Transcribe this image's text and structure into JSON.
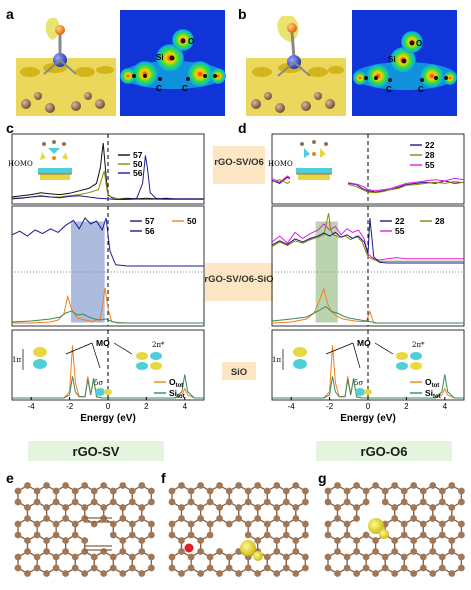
{
  "panel_letters": [
    "a",
    "b",
    "c",
    "d",
    "e",
    "f",
    "g"
  ],
  "map_atoms": {
    "o": "O",
    "si": "Si",
    "c": "C"
  },
  "center_labels": {
    "rgo_sv_o6": "rGO-SV/O6",
    "rgo_sv_o6_sio": "rGO-SV/O6-SiO",
    "sio": "SiO"
  },
  "bottom_labels": {
    "left": "rGO-SV",
    "right": "rGO-O6"
  },
  "mo": {
    "homo": "HOMO",
    "mo": "MO",
    "pi": "1π",
    "sigma": "5σ",
    "pistar": "2π*"
  },
  "colors": {
    "black": "#111111",
    "olive": "#8a8a00",
    "navy": "#1c1c8c",
    "magenta": "#e020e0",
    "orange": "#f08020",
    "green": "#3a8a5a",
    "blue_box": "#4a6ab8",
    "green_box": "#6aa050",
    "tan_box": "#fde6c4",
    "green_label": "#e3f4df",
    "atom_c": "#9a7050"
  },
  "chart_data": [
    {
      "id": "c-top",
      "type": "line",
      "xlabel": "",
      "ylabel": "",
      "xlim": [
        -5,
        5
      ],
      "xticks": [],
      "legend": [
        "57",
        "50",
        "56"
      ],
      "series": [
        {
          "name": "57",
          "color": "#111111",
          "x": [
            -5,
            -4.5,
            -4,
            -3.5,
            -3,
            -2.5,
            -2,
            -1.5,
            -1,
            -0.6,
            -0.4,
            -0.25,
            -0.15,
            -0.05,
            0,
            0.2,
            0.5,
            1,
            1.5,
            2,
            2.5,
            3,
            3.5,
            4,
            4.5,
            5
          ],
          "y": [
            0.08,
            0.1,
            0.12,
            0.15,
            0.13,
            0.12,
            0.14,
            0.18,
            0.22,
            0.3,
            0.55,
            0.95,
            0.6,
            0.25,
            0.12,
            0.07,
            0.05,
            0.06,
            0.05,
            0.06,
            0.05,
            0.06,
            0.05,
            0.05,
            0.05,
            0.05
          ]
        },
        {
          "name": "50",
          "color": "#8a8a00",
          "x": [
            -5,
            -4.5,
            -4,
            -3.5,
            -3,
            -2.5,
            -2,
            -1.5,
            -1,
            -0.5,
            -0.2,
            0,
            0.5,
            1,
            2,
            3,
            4,
            5
          ],
          "y": [
            0.06,
            0.07,
            0.08,
            0.09,
            0.08,
            0.08,
            0.1,
            0.12,
            0.15,
            0.2,
            0.5,
            0.1,
            0.05,
            0.04,
            0.04,
            0.04,
            0.04,
            0.04
          ]
        },
        {
          "name": "56",
          "color": "#1c1c8c",
          "x": [
            -5,
            -4.5,
            -4,
            -3.5,
            -3,
            -2.5,
            -2,
            -1.5,
            -1,
            -0.5,
            0,
            0.5,
            1,
            1.5,
            1.8,
            1.95,
            2.05,
            2.2,
            2.5,
            3,
            3.5,
            4,
            4.5,
            5
          ],
          "y": [
            0.05,
            0.06,
            0.08,
            0.1,
            0.08,
            0.07,
            0.09,
            0.1,
            0.08,
            0.06,
            0.05,
            0.04,
            0.04,
            0.06,
            0.3,
            0.75,
            0.55,
            0.15,
            0.06,
            0.05,
            0.05,
            0.05,
            0.05,
            0.05
          ]
        }
      ]
    },
    {
      "id": "c-mid",
      "type": "line",
      "xlabel": "",
      "ylabel": "",
      "xlim": [
        -5,
        5
      ],
      "xticks": [],
      "legend": [
        "57",
        "50",
        "56"
      ],
      "highlight": {
        "x0": -1.9,
        "x1": -0.2,
        "color": "#4a6ab8"
      },
      "series": [
        {
          "name": "56",
          "color": "#1c1c8c",
          "x": [
            -5,
            -4.6,
            -4.2,
            -3.8,
            -3.4,
            -3,
            -2.6,
            -2.2,
            -1.8,
            -1.5,
            -1.2,
            -0.9,
            -0.6,
            -0.3,
            -0.1,
            0.1,
            0.4,
            1,
            2,
            3,
            4,
            5
          ],
          "y": [
            0.62,
            0.68,
            0.6,
            0.7,
            0.64,
            0.72,
            0.66,
            0.78,
            0.86,
            0.72,
            0.9,
            0.8,
            0.85,
            0.7,
            0.9,
            0.35,
            0.12,
            0.1,
            0.1,
            0.1,
            0.1,
            0.1
          ]
        },
        {
          "name": "O",
          "color": "#f08020",
          "x": [
            -5,
            -4,
            -3,
            -2.6,
            -2.3,
            -2.1,
            -1.9,
            -1.6,
            -1.2,
            -0.8,
            -0.4,
            -0.15,
            0,
            0.2,
            0.5,
            1,
            2,
            3,
            4,
            5
          ],
          "y": [
            0.02,
            0.02,
            0.04,
            0.08,
            0.2,
            0.55,
            0.3,
            0.12,
            0.08,
            0.05,
            0.1,
            0.72,
            0.3,
            0.05,
            0.02,
            0.02,
            0.02,
            0.02,
            0.02,
            0.02
          ]
        },
        {
          "name": "Si",
          "color": "#3a8a5a",
          "x": [
            -5,
            -4,
            -3,
            -2.5,
            -2.2,
            -1.9,
            -1.6,
            -1.3,
            -1,
            -0.7,
            -0.4,
            -0.1,
            0.2,
            0.5,
            1,
            2,
            3,
            4,
            5
          ],
          "y": [
            0.04,
            0.06,
            0.1,
            0.14,
            0.22,
            0.26,
            0.18,
            0.2,
            0.14,
            0.1,
            0.08,
            0.1,
            0.05,
            0.03,
            0.02,
            0.02,
            0.02,
            0.02,
            0.02
          ]
        }
      ]
    },
    {
      "id": "c-bot",
      "type": "line",
      "xlabel": "Energy (eV)",
      "ylabel": "",
      "xlim": [
        -5,
        5
      ],
      "xticks": [
        -4,
        -2,
        0,
        2,
        4
      ],
      "legend": [
        "Otot",
        "Sitot"
      ],
      "series": [
        {
          "name": "Otot",
          "color": "#f08020",
          "x": [
            -5,
            -2.3,
            -2.0,
            -1.85,
            -1.7,
            -1.5,
            -1.2,
            -1.05,
            -0.9,
            -0.75,
            -0.6,
            -0.3,
            0,
            3.5,
            3.85,
            4.0,
            4.15,
            4.5,
            5
          ],
          "y": [
            0,
            0,
            0.1,
            0.85,
            0.25,
            0.02,
            0.02,
            0.35,
            0.05,
            0.3,
            0.02,
            0,
            0,
            0,
            0.05,
            0.15,
            0.05,
            0,
            0
          ]
        },
        {
          "name": "Sitot",
          "color": "#3a8a5a",
          "x": [
            -5,
            -2.3,
            -2.0,
            -1.85,
            -1.7,
            -1.5,
            -1.2,
            -1.05,
            -0.9,
            -0.75,
            -0.6,
            -0.3,
            0,
            3.5,
            3.85,
            4.0,
            4.15,
            4.5,
            5
          ],
          "y": [
            0,
            0,
            0.05,
            0.35,
            0.1,
            0.02,
            0.02,
            0.3,
            0.05,
            0.32,
            0.02,
            0,
            0,
            0,
            0.1,
            0.38,
            0.1,
            0,
            0
          ]
        }
      ]
    },
    {
      "id": "d-top",
      "type": "line",
      "xlabel": "",
      "ylabel": "",
      "xlim": [
        -5,
        5
      ],
      "xticks": [],
      "legend": [
        "22",
        "28",
        "55"
      ],
      "series": [
        {
          "name": "22",
          "color": "#1c1c8c",
          "x": [
            -5,
            -4.6,
            -4.2,
            -3.8,
            -3.4,
            -3,
            -2.6,
            -2.2,
            -1.8,
            -1.4,
            -1,
            -0.6,
            -0.3,
            0,
            0.4,
            0.8,
            1.2,
            1.6,
            2,
            2.5,
            3,
            3.5,
            4,
            4.5,
            5
          ],
          "y": [
            0.35,
            0.3,
            0.4,
            0.32,
            0.42,
            0.3,
            0.38,
            0.3,
            0.34,
            0.4,
            0.3,
            0.28,
            0.22,
            0.18,
            0.16,
            0.18,
            0.2,
            0.24,
            0.28,
            0.3,
            0.32,
            0.3,
            0.34,
            0.3,
            0.32
          ]
        },
        {
          "name": "28",
          "color": "#8a8a00",
          "x": [
            -5,
            -4.6,
            -4.2,
            -3.8,
            -3.4,
            -3,
            -2.6,
            -2.2,
            -1.8,
            -1.4,
            -1,
            -0.6,
            -0.3,
            0,
            0.4,
            0.8,
            1.2,
            1.6,
            2,
            2.5,
            3,
            3.5,
            4,
            4.5,
            5
          ],
          "y": [
            0.32,
            0.36,
            0.3,
            0.38,
            0.34,
            0.36,
            0.32,
            0.35,
            0.38,
            0.32,
            0.28,
            0.25,
            0.2,
            0.16,
            0.15,
            0.17,
            0.2,
            0.22,
            0.27,
            0.28,
            0.3,
            0.32,
            0.3,
            0.33,
            0.31
          ]
        },
        {
          "name": "55",
          "color": "#e020e0",
          "x": [
            -5,
            -4.6,
            -4.2,
            -3.8,
            -3.4,
            -3,
            -2.6,
            -2.3,
            -2.15,
            -2.05,
            -1.9,
            -1.6,
            -1.2,
            -0.8,
            -0.5,
            -0.2,
            0,
            0.4,
            0.8,
            1.2,
            1.6,
            2,
            2.5,
            3,
            3.5,
            4,
            4.5,
            5
          ],
          "y": [
            0.38,
            0.32,
            0.42,
            0.34,
            0.4,
            0.36,
            0.44,
            0.5,
            0.95,
            0.6,
            0.42,
            0.36,
            0.32,
            0.3,
            0.28,
            0.24,
            0.2,
            0.18,
            0.2,
            0.22,
            0.26,
            0.3,
            0.32,
            0.34,
            0.36,
            0.34,
            0.38,
            0.36
          ]
        }
      ]
    },
    {
      "id": "d-mid",
      "type": "line",
      "xlabel": "",
      "ylabel": "",
      "xlim": [
        -5,
        5
      ],
      "xticks": [],
      "legend": [
        "22",
        "28",
        "55"
      ],
      "highlight": {
        "x0": -2.7,
        "x1": -1.6,
        "color": "#6aa050"
      },
      "series": [
        {
          "name": "55",
          "color": "#e020e0",
          "x": [
            -5,
            -4.6,
            -4.2,
            -3.8,
            -3.4,
            -3,
            -2.6,
            -2.3,
            -2,
            -1.7,
            -1.4,
            -1.1,
            -0.8,
            -0.5,
            -0.2,
            0,
            0.3,
            0.6,
            1,
            1.5,
            2,
            2.5,
            3,
            3.5,
            4,
            4.5,
            5
          ],
          "y": [
            0.5,
            0.6,
            0.48,
            0.66,
            0.56,
            0.64,
            0.7,
            0.8,
            0.7,
            0.76,
            0.62,
            0.72,
            0.66,
            0.7,
            0.55,
            0.3,
            0.22,
            0.2,
            0.22,
            0.24,
            0.22,
            0.22,
            0.22,
            0.22,
            0.22,
            0.22,
            0.22
          ]
        },
        {
          "name": "28",
          "color": "#8a8a00",
          "x": [
            -5,
            -4.6,
            -4.2,
            -3.8,
            -3.4,
            -3,
            -2.6,
            -2.3,
            -2.05,
            -1.95,
            -1.8,
            -1.5,
            -1.2,
            -0.9,
            -0.6,
            -0.3,
            0,
            0.5,
            1,
            2,
            3,
            4,
            5
          ],
          "y": [
            0.42,
            0.5,
            0.44,
            0.52,
            0.48,
            0.54,
            0.58,
            0.62,
            0.98,
            0.7,
            0.62,
            0.58,
            0.6,
            0.54,
            0.6,
            0.5,
            0.25,
            0.18,
            0.18,
            0.18,
            0.18,
            0.18,
            0.18
          ]
        },
        {
          "name": "22",
          "color": "#1c1c8c",
          "x": [
            -5,
            -4.6,
            -4.2,
            -3.8,
            -3.4,
            -3,
            -2.6,
            -2.3,
            -2,
            -1.7,
            -1.4,
            -1.1,
            -0.8,
            -0.5,
            -0.2,
            0,
            0.1,
            0.3,
            0.6,
            1,
            2,
            3,
            4,
            5
          ],
          "y": [
            0.45,
            0.52,
            0.46,
            0.55,
            0.5,
            0.56,
            0.6,
            0.65,
            0.6,
            0.66,
            0.58,
            0.62,
            0.56,
            0.6,
            0.5,
            0.3,
            0.9,
            0.25,
            0.16,
            0.15,
            0.15,
            0.15,
            0.15,
            0.15
          ]
        },
        {
          "name": "O",
          "color": "#f08020",
          "x": [
            -5,
            -4,
            -3.2,
            -2.8,
            -2.5,
            -2.3,
            -2.1,
            -1.9,
            -1.6,
            -1.3,
            -1,
            -0.7,
            -0.4,
            -0.1,
            0.1,
            0.3,
            0.5,
            1,
            2,
            3,
            4,
            5
          ],
          "y": [
            0.02,
            0.04,
            0.1,
            0.22,
            0.5,
            0.7,
            0.4,
            0.25,
            0.15,
            0.1,
            0.08,
            0.06,
            0.05,
            0.05,
            0.25,
            0.02,
            0.02,
            0.02,
            0.02,
            0.02,
            0.02,
            0.02
          ]
        },
        {
          "name": "Si",
          "color": "#3a8a5a",
          "x": [
            -5,
            -4,
            -3.2,
            -2.8,
            -2.5,
            -2.2,
            -1.9,
            -1.6,
            -1.3,
            -1,
            -0.7,
            -0.4,
            -0.1,
            0.2,
            0.5,
            1,
            2,
            3,
            4,
            5
          ],
          "y": [
            0.06,
            0.1,
            0.14,
            0.22,
            0.28,
            0.35,
            0.25,
            0.22,
            0.16,
            0.12,
            0.1,
            0.08,
            0.06,
            0.04,
            0.02,
            0.02,
            0.02,
            0.02,
            0.02,
            0.02
          ]
        }
      ]
    },
    {
      "id": "d-bot",
      "type": "line",
      "xlabel": "Energy (eV)",
      "ylabel": "",
      "xlim": [
        -5,
        5
      ],
      "xticks": [
        -4,
        -2,
        0,
        2,
        4
      ],
      "legend": [
        "Otot",
        "Sitot"
      ],
      "series": [
        {
          "name": "Otot",
          "color": "#f08020",
          "x": [
            -5,
            -2.3,
            -2.0,
            -1.85,
            -1.7,
            -1.5,
            -1.2,
            -1.05,
            -0.9,
            -0.75,
            -0.6,
            -0.3,
            0,
            3.5,
            3.85,
            4.0,
            4.15,
            4.5,
            5
          ],
          "y": [
            0,
            0,
            0.1,
            0.85,
            0.25,
            0.02,
            0.02,
            0.35,
            0.05,
            0.3,
            0.02,
            0,
            0,
            0,
            0.05,
            0.15,
            0.05,
            0,
            0
          ]
        },
        {
          "name": "Sitot",
          "color": "#3a8a5a",
          "x": [
            -5,
            -2.3,
            -2.0,
            -1.85,
            -1.7,
            -1.5,
            -1.2,
            -1.05,
            -0.9,
            -0.75,
            -0.6,
            -0.3,
            0,
            3.5,
            3.85,
            4.0,
            4.15,
            4.5,
            5
          ],
          "y": [
            0,
            0,
            0.05,
            0.35,
            0.1,
            0.02,
            0.02,
            0.3,
            0.05,
            0.32,
            0.02,
            0,
            0,
            0,
            0.1,
            0.38,
            0.1,
            0,
            0
          ]
        }
      ]
    }
  ]
}
